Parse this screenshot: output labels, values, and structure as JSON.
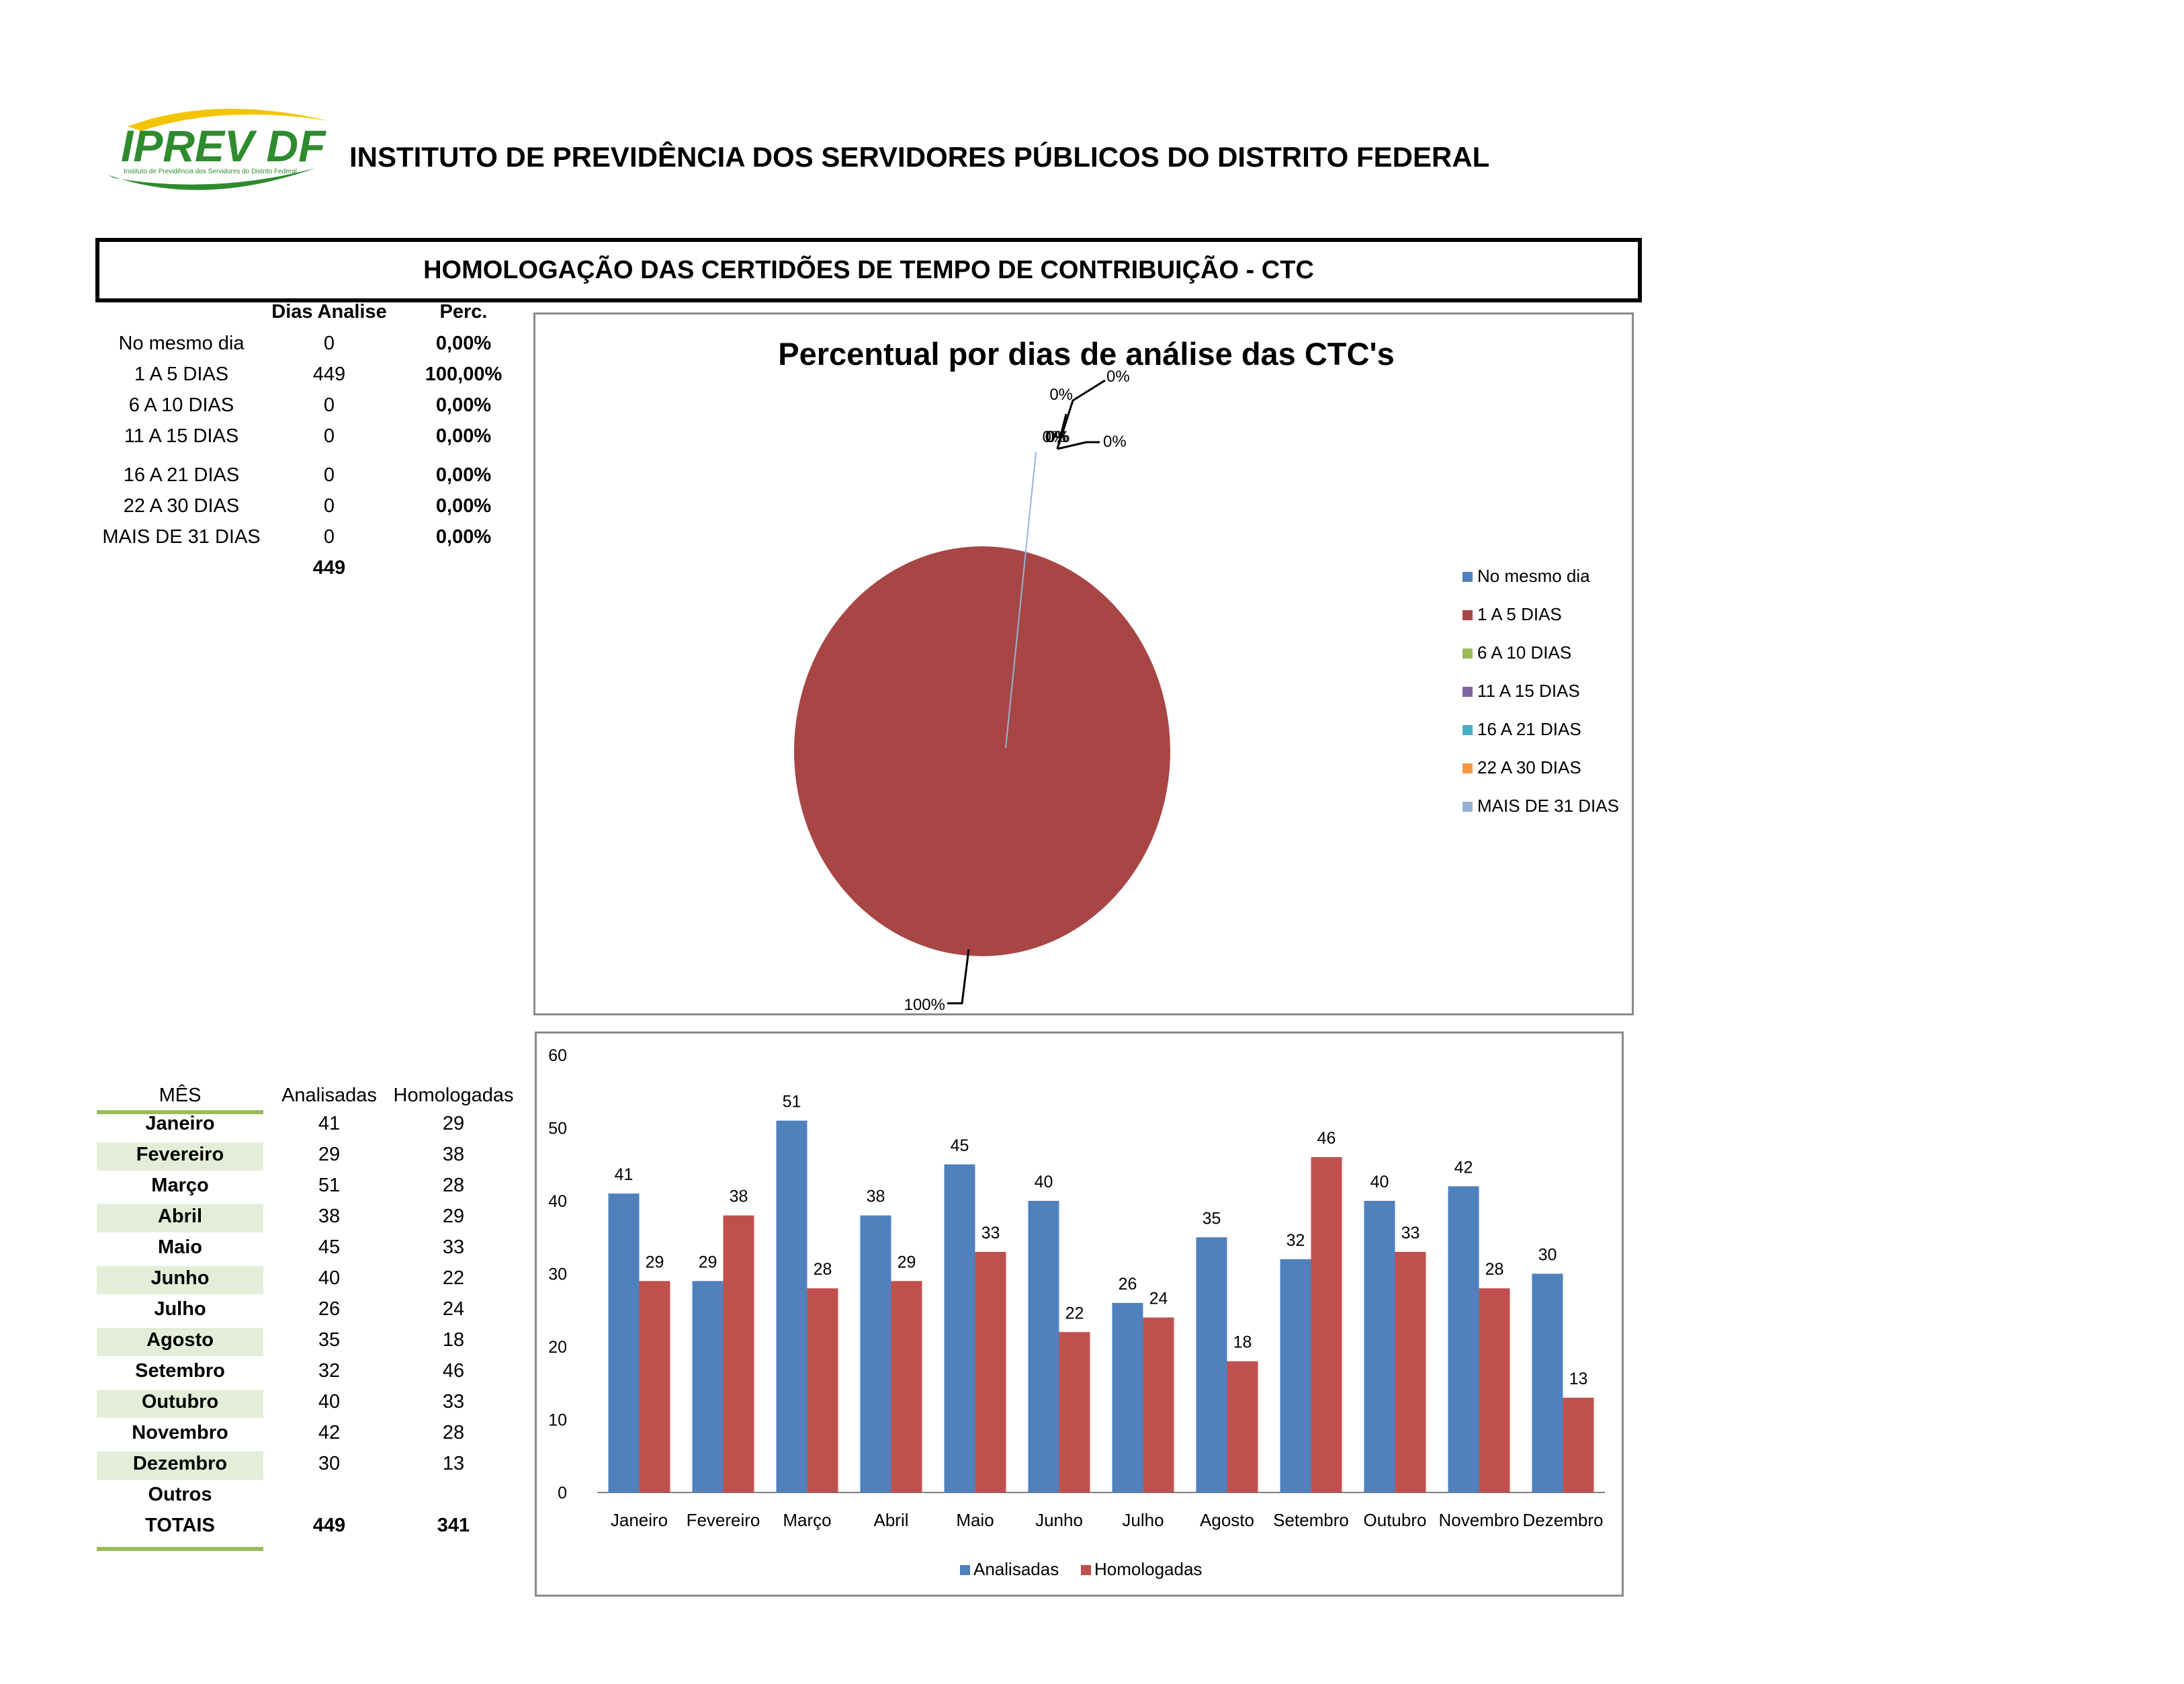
{
  "header": {
    "logo_text": "IPREV DF",
    "logo_subtext": "Instituto de Previdência dos Servidores do Distrito Federal",
    "institution_title": "INSTITUTO DE PREVIDÊNCIA DOS SERVIDORES PÚBLICOS DO DISTRITO FEDERAL",
    "report_title": "HOMOLOGAÇÃO DAS CERTIDÕES DE TEMPO DE CONTRIBUIÇÃO - CTC"
  },
  "colors": {
    "blue": "#4f81bd",
    "red": "#c0504d",
    "pie_red": "#a84646",
    "green": "#9bbb59",
    "purple": "#8064a2",
    "teal": "#4bacc6",
    "orange": "#f79646",
    "light_blue": "#95b3d7",
    "month_band": "#e4edd8",
    "logo_green": "#2e8b2e",
    "logo_yellow": "#f2c500"
  },
  "days_table": {
    "headers": [
      "Dias Analise",
      "Perc."
    ],
    "rows": [
      {
        "label": "No mesmo dia",
        "count": "0",
        "perc": "0,00%"
      },
      {
        "label": "1 A 5 DIAS",
        "count": "449",
        "perc": "100,00%"
      },
      {
        "label": "6 A 10 DIAS",
        "count": "0",
        "perc": "0,00%"
      },
      {
        "label": "11 A 15 DIAS",
        "count": "0",
        "perc": "0,00%"
      },
      {
        "label": "16 A 21 DIAS",
        "count": "0",
        "perc": "0,00%"
      },
      {
        "label": "22 A 30 DIAS",
        "count": "0",
        "perc": "0,00%"
      },
      {
        "label": "MAIS DE 31 DIAS",
        "count": "0",
        "perc": "0,00%"
      }
    ],
    "total": "449"
  },
  "month_table": {
    "headers": [
      "MÊS",
      "Analisadas",
      "Homologadas"
    ],
    "rows": [
      {
        "month": "Janeiro",
        "analisadas": "41",
        "homologadas": "29"
      },
      {
        "month": "Fevereiro",
        "analisadas": "29",
        "homologadas": "38"
      },
      {
        "month": "Março",
        "analisadas": "51",
        "homologadas": "28"
      },
      {
        "month": "Abril",
        "analisadas": "38",
        "homologadas": "29"
      },
      {
        "month": "Maio",
        "analisadas": "45",
        "homologadas": "33"
      },
      {
        "month": "Junho",
        "analisadas": "40",
        "homologadas": "22"
      },
      {
        "month": "Julho",
        "analisadas": "26",
        "homologadas": "24"
      },
      {
        "month": "Agosto",
        "analisadas": "35",
        "homologadas": "18"
      },
      {
        "month": "Setembro",
        "analisadas": "32",
        "homologadas": "46"
      },
      {
        "month": "Outubro",
        "analisadas": "40",
        "homologadas": "33"
      },
      {
        "month": "Novembro",
        "analisadas": "42",
        "homologadas": "28"
      },
      {
        "month": "Dezembro",
        "analisadas": "30",
        "homologadas": "13"
      },
      {
        "month": "Outros",
        "analisadas": "",
        "homologadas": ""
      }
    ],
    "totals": {
      "label": "TOTAIS",
      "analisadas": "449",
      "homologadas": "341"
    }
  },
  "chart_data": [
    {
      "type": "pie",
      "title": "Percentual por dias de análise das CTC's",
      "categories": [
        "No mesmo dia",
        "1 A 5 DIAS",
        "6 A 10 DIAS",
        "11 A 15 DIAS",
        "16 A 21 DIAS",
        "22 A 30 DIAS",
        "MAIS DE 31 DIAS"
      ],
      "values": [
        0,
        100,
        0,
        0,
        0,
        0,
        0
      ],
      "data_labels": [
        "0%",
        "100%",
        "0%",
        "0%",
        "0%",
        "0%",
        "0%"
      ],
      "colors": [
        "#4f81bd",
        "#a84646",
        "#9bbb59",
        "#8064a2",
        "#4bacc6",
        "#f79646",
        "#95b3d7"
      ],
      "legend": "right"
    },
    {
      "type": "bar",
      "title": "",
      "categories": [
        "Janeiro",
        "Fevereiro",
        "Março",
        "Abril",
        "Maio",
        "Junho",
        "Julho",
        "Agosto",
        "Setembro",
        "Outubro",
        "Novembro",
        "Dezembro"
      ],
      "series": [
        {
          "name": "Analisadas",
          "values": [
            41,
            29,
            51,
            38,
            45,
            40,
            26,
            35,
            32,
            40,
            42,
            30
          ],
          "color": "#4f81bd"
        },
        {
          "name": "Homologadas",
          "values": [
            29,
            38,
            28,
            29,
            33,
            22,
            24,
            18,
            46,
            33,
            28,
            13
          ],
          "color": "#c0504d"
        }
      ],
      "ylim": [
        0,
        60
      ],
      "yticks": [
        0,
        10,
        20,
        30,
        40,
        50,
        60
      ],
      "xlabel": "",
      "ylabel": "",
      "grid": false,
      "legend": "bottom"
    }
  ]
}
